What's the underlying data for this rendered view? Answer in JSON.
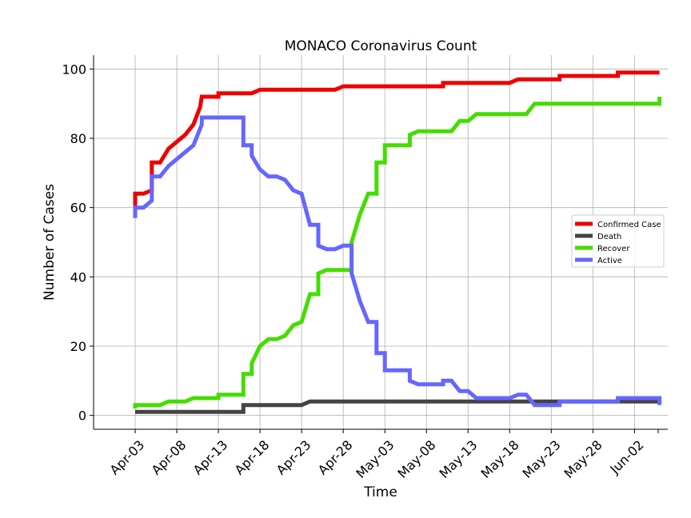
{
  "chart_data": {
    "type": "line",
    "title": "MONACO Coronavirus Count",
    "xlabel": "Time",
    "ylabel": "Number of Cases",
    "ylim": [
      -4,
      104
    ],
    "xlim": [
      "2020-03-29",
      "2020-06-06"
    ],
    "grid": true,
    "legend_position": "center-right",
    "x_ticks": [
      "Apr-03",
      "Apr-08",
      "Apr-13",
      "Apr-18",
      "Apr-23",
      "Apr-28",
      "May-03",
      "May-08",
      "May-13",
      "May-18",
      "May-23",
      "May-28",
      "Jun-02"
    ],
    "x_tick_dates": [
      "2020-04-03",
      "2020-04-08",
      "2020-04-13",
      "2020-04-18",
      "2020-04-23",
      "2020-04-28",
      "2020-05-03",
      "2020-05-08",
      "2020-05-13",
      "2020-05-18",
      "2020-05-23",
      "2020-05-28",
      "2020-06-02"
    ],
    "y_ticks": [
      0,
      20,
      40,
      60,
      80,
      100
    ],
    "series": [
      {
        "name": "Confirmed Case",
        "color": "#ee0000",
        "points": [
          [
            "2020-04-03",
            60
          ],
          [
            "2020-04-03",
            64
          ],
          [
            "2020-04-04",
            64
          ],
          [
            "2020-04-05",
            65
          ],
          [
            "2020-04-05",
            73
          ],
          [
            "2020-04-06",
            73
          ],
          [
            "2020-04-07",
            77
          ],
          [
            "2020-04-08",
            79
          ],
          [
            "2020-04-09",
            81
          ],
          [
            "2020-04-10",
            84
          ],
          [
            "2020-04-10.8",
            89
          ],
          [
            "2020-04-11",
            92
          ],
          [
            "2020-04-13",
            92
          ],
          [
            "2020-04-13",
            93
          ],
          [
            "2020-04-17",
            93
          ],
          [
            "2020-04-18",
            94
          ],
          [
            "2020-04-27",
            94
          ],
          [
            "2020-04-28",
            95
          ],
          [
            "2020-05-10",
            95
          ],
          [
            "2020-05-10",
            96
          ],
          [
            "2020-05-18",
            96
          ],
          [
            "2020-05-19",
            97
          ],
          [
            "2020-05-24",
            97
          ],
          [
            "2020-05-24",
            98
          ],
          [
            "2020-05-31",
            98
          ],
          [
            "2020-05-31",
            99
          ],
          [
            "2020-06-05",
            99
          ]
        ]
      },
      {
        "name": "Death",
        "color": "#444444",
        "points": [
          [
            "2020-04-03",
            1
          ],
          [
            "2020-04-16",
            1
          ],
          [
            "2020-04-16",
            3
          ],
          [
            "2020-04-23",
            3
          ],
          [
            "2020-04-24",
            4
          ],
          [
            "2020-06-05",
            4
          ]
        ]
      },
      {
        "name": "Recover",
        "color": "#44dd00",
        "points": [
          [
            "2020-04-03",
            2
          ],
          [
            "2020-04-03",
            3
          ],
          [
            "2020-04-06",
            3
          ],
          [
            "2020-04-07",
            4
          ],
          [
            "2020-04-09",
            4
          ],
          [
            "2020-04-10",
            5
          ],
          [
            "2020-04-13",
            5
          ],
          [
            "2020-04-13",
            6
          ],
          [
            "2020-04-16",
            6
          ],
          [
            "2020-04-16",
            12
          ],
          [
            "2020-04-17",
            12
          ],
          [
            "2020-04-17",
            15
          ],
          [
            "2020-04-18",
            20
          ],
          [
            "2020-04-19",
            22
          ],
          [
            "2020-04-20",
            22
          ],
          [
            "2020-04-21",
            23
          ],
          [
            "2020-04-22",
            26
          ],
          [
            "2020-04-23",
            27
          ],
          [
            "2020-04-24",
            35
          ],
          [
            "2020-04-25",
            35
          ],
          [
            "2020-04-25",
            41
          ],
          [
            "2020-04-26",
            42
          ],
          [
            "2020-04-29",
            42
          ],
          [
            "2020-04-29",
            50
          ],
          [
            "2020-04-30",
            58
          ],
          [
            "2020-05-01",
            64
          ],
          [
            "2020-05-02",
            64
          ],
          [
            "2020-05-02",
            73
          ],
          [
            "2020-05-03",
            73
          ],
          [
            "2020-05-03",
            78
          ],
          [
            "2020-05-06",
            78
          ],
          [
            "2020-05-06",
            81
          ],
          [
            "2020-05-07",
            82
          ],
          [
            "2020-05-11",
            82
          ],
          [
            "2020-05-12",
            85
          ],
          [
            "2020-05-13",
            85
          ],
          [
            "2020-05-14",
            87
          ],
          [
            "2020-05-20",
            87
          ],
          [
            "2020-05-21",
            90
          ],
          [
            "2020-06-05",
            90
          ],
          [
            "2020-06-05",
            92
          ]
        ]
      },
      {
        "name": "Active",
        "color": "#6666ff",
        "points": [
          [
            "2020-04-03",
            57
          ],
          [
            "2020-04-03",
            60
          ],
          [
            "2020-04-04",
            60
          ],
          [
            "2020-04-05",
            62
          ],
          [
            "2020-04-05",
            69
          ],
          [
            "2020-04-06",
            69
          ],
          [
            "2020-04-07",
            72
          ],
          [
            "2020-04-10",
            78
          ],
          [
            "2020-04-11",
            84
          ],
          [
            "2020-04-11",
            86
          ],
          [
            "2020-04-16",
            86
          ],
          [
            "2020-04-16",
            78
          ],
          [
            "2020-04-17",
            78
          ],
          [
            "2020-04-17",
            75
          ],
          [
            "2020-04-18",
            71
          ],
          [
            "2020-04-19",
            69
          ],
          [
            "2020-04-20",
            69
          ],
          [
            "2020-04-21",
            68
          ],
          [
            "2020-04-22",
            65
          ],
          [
            "2020-04-23",
            64
          ],
          [
            "2020-04-24",
            55
          ],
          [
            "2020-04-25",
            55
          ],
          [
            "2020-04-25",
            49
          ],
          [
            "2020-04-26",
            48
          ],
          [
            "2020-04-27",
            48
          ],
          [
            "2020-04-28",
            49
          ],
          [
            "2020-04-29",
            49
          ],
          [
            "2020-04-29",
            41
          ],
          [
            "2020-04-30",
            33
          ],
          [
            "2020-05-01",
            27
          ],
          [
            "2020-05-02",
            27
          ],
          [
            "2020-05-02",
            18
          ],
          [
            "2020-05-03",
            18
          ],
          [
            "2020-05-03",
            13
          ],
          [
            "2020-05-06",
            13
          ],
          [
            "2020-05-06",
            10
          ],
          [
            "2020-05-07",
            9
          ],
          [
            "2020-05-10",
            9
          ],
          [
            "2020-05-10",
            10
          ],
          [
            "2020-05-11",
            10
          ],
          [
            "2020-05-12",
            7
          ],
          [
            "2020-05-13",
            7
          ],
          [
            "2020-05-14",
            5
          ],
          [
            "2020-05-18",
            5
          ],
          [
            "2020-05-19",
            6
          ],
          [
            "2020-05-20",
            6
          ],
          [
            "2020-05-21",
            3
          ],
          [
            "2020-05-24",
            3
          ],
          [
            "2020-05-24",
            4
          ],
          [
            "2020-05-31",
            4
          ],
          [
            "2020-05-31",
            5
          ],
          [
            "2020-06-05",
            5
          ],
          [
            "2020-06-05",
            3
          ]
        ]
      }
    ]
  }
}
